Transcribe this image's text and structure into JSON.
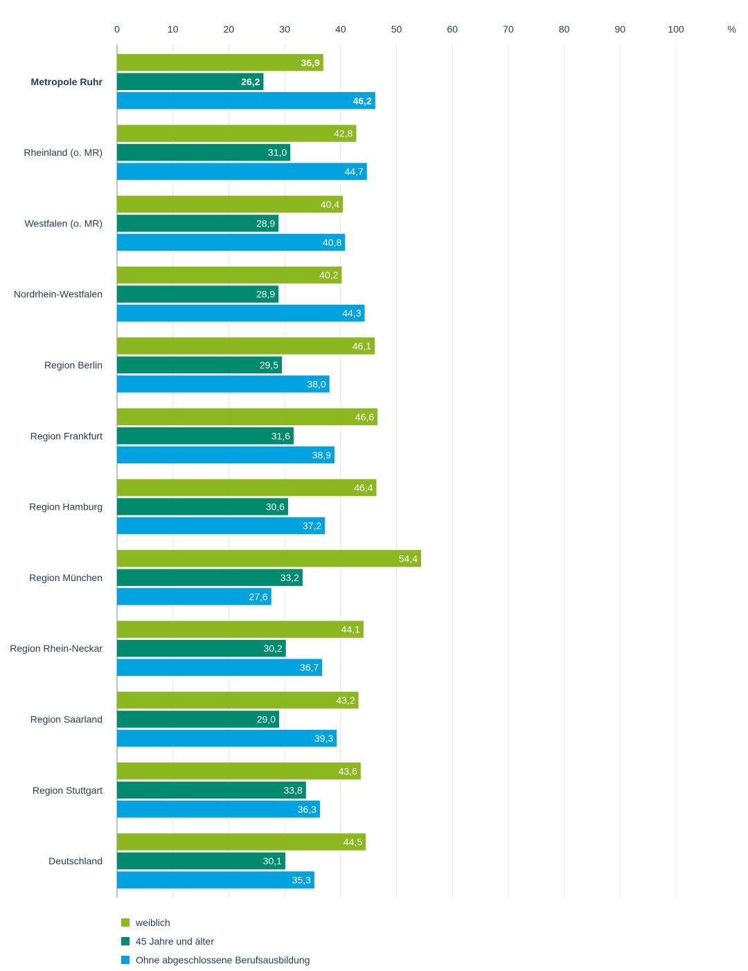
{
  "chart_data": {
    "type": "bar",
    "orientation": "horizontal",
    "unit": "%",
    "xlim": [
      0,
      110
    ],
    "ticks": [
      "0",
      "10",
      "20",
      "30",
      "40",
      "50",
      "60",
      "70",
      "80",
      "90",
      "100",
      "%"
    ],
    "tick_values": [
      0,
      10,
      20,
      30,
      40,
      50,
      60,
      70,
      80,
      90,
      100,
      110
    ],
    "grid": true,
    "legend_position": "bottom-left",
    "categories": [
      "Metropole Ruhr",
      "Rheinland (o. MR)",
      "Westfalen (o. MR)",
      "Nordrhein-Westfalen",
      "Region Berlin",
      "Region Frankfurt",
      "Region Hamburg",
      "Region München",
      "Region Rhein-Neckar",
      "Region Saarland",
      "Region Stuttgart",
      "Deutschland"
    ],
    "highlight_category": "Metropole Ruhr",
    "series": [
      {
        "name": "weiblich",
        "color": "#8ab81e",
        "values": [
          36.9,
          42.8,
          40.4,
          40.2,
          46.1,
          46.6,
          46.4,
          54.4,
          44.1,
          43.2,
          43.6,
          44.5
        ],
        "labels": [
          "36,9",
          "42,8",
          "40,4",
          "40,2",
          "46,1",
          "46,6",
          "46,4",
          "54,4",
          "44,1",
          "43,2",
          "43,6",
          "44,5"
        ]
      },
      {
        "name": "45 Jahre und älter",
        "color": "#008a6e",
        "values": [
          26.2,
          31.0,
          28.9,
          28.9,
          29.5,
          31.6,
          30.6,
          33.2,
          30.2,
          29.0,
          33.8,
          30.1
        ],
        "labels": [
          "26,2",
          "31,0",
          "28,9",
          "28,9",
          "29,5",
          "31,6",
          "30,6",
          "33,2",
          "30,2",
          "29,0",
          "33,8",
          "30,1"
        ]
      },
      {
        "name": "Ohne abgeschlossene Berufsausbildung",
        "color": "#00a3e0",
        "values": [
          46.2,
          44.7,
          40.8,
          44.3,
          38.0,
          38.9,
          37.2,
          27.6,
          36.7,
          39.3,
          36.3,
          35.3
        ],
        "labels": [
          "46,2",
          "44,7",
          "40,8",
          "44,3",
          "38,0",
          "38,9",
          "37,2",
          "27,6",
          "36,7",
          "39,3",
          "36,3",
          "35,3"
        ]
      }
    ],
    "colors": {
      "grid": "#e4e8ec",
      "axis": "#8a99a8",
      "text": "#1f3b57",
      "value_text": "#ffffff"
    }
  }
}
